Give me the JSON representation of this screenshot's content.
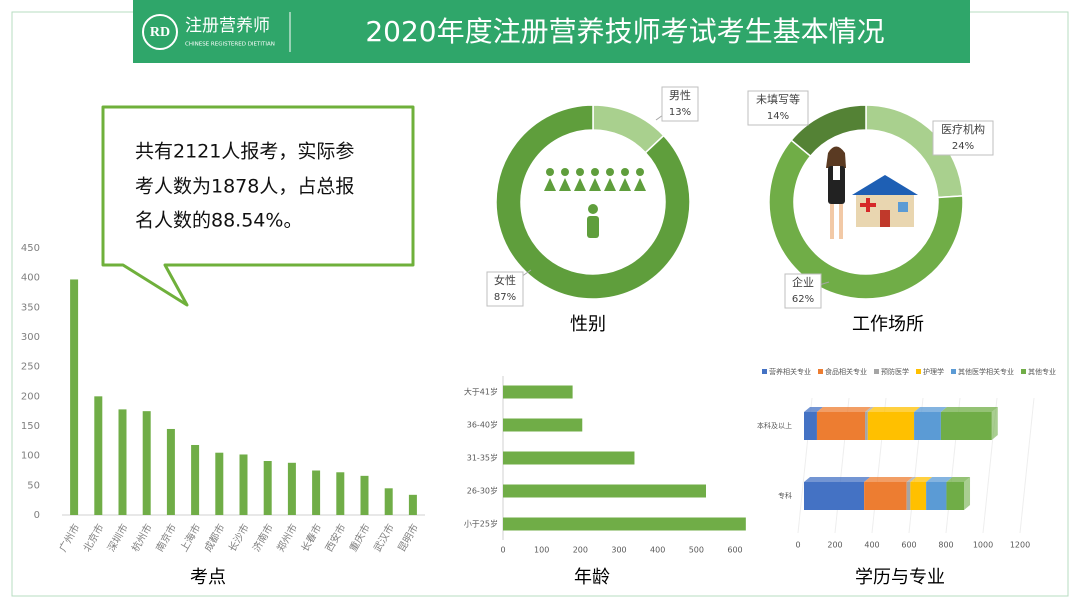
{
  "header": {
    "logo_mark": "RD",
    "logo_name": "注册营养师",
    "logo_subtitle": "CHINESE REGISTERED DIETITIAN",
    "title": "2020年度注册营养技师考试考生基本情况"
  },
  "note": {
    "lines": [
      "共有2121人报考，实际参",
      "考人数为1878人，占总报",
      "名人数的88.54%。"
    ]
  },
  "chart_data": [
    {
      "type": "bar",
      "title": "考点",
      "categories": [
        "广州市",
        "北京市",
        "深圳市",
        "杭州市",
        "南京市",
        "上海市",
        "成都市",
        "长沙市",
        "济南市",
        "郑州市",
        "长春市",
        "西安市",
        "重庆市",
        "武汉市",
        "昆明市"
      ],
      "values": [
        397,
        200,
        178,
        175,
        145,
        118,
        105,
        102,
        91,
        88,
        75,
        72,
        66,
        45,
        34
      ],
      "color": "#70ad47",
      "ylim": [
        0,
        450
      ],
      "yticks": [
        0,
        50,
        100,
        150,
        200,
        250,
        300,
        350,
        400,
        450
      ],
      "grid": false
    },
    {
      "type": "donut",
      "title": "性别",
      "categories": [
        "男性",
        "女性"
      ],
      "values": [
        13,
        87
      ],
      "value_labels": [
        "13%",
        "87%"
      ],
      "colors": [
        "#a9d08e",
        "#5f9e3c"
      ]
    },
    {
      "type": "donut",
      "title": "工作场所",
      "categories": [
        "医疗机构",
        "企业",
        "未填写等"
      ],
      "values": [
        24,
        62,
        14
      ],
      "value_labels": [
        "24%",
        "62%",
        "14%"
      ],
      "colors": [
        "#a9d08e",
        "#70ad47",
        "#548235"
      ]
    },
    {
      "type": "barh",
      "title": "年龄",
      "categories": [
        "大于41岁",
        "36-40岁",
        "31-35岁",
        "26-30岁",
        "小于25岁"
      ],
      "values": [
        180,
        205,
        340,
        525,
        628
      ],
      "color": "#70ad47",
      "xlim": [
        0,
        630
      ],
      "xticks": [
        0,
        100,
        200,
        300,
        400,
        500,
        600
      ]
    },
    {
      "type": "stacked_barh",
      "title": "学历与专业",
      "categories": [
        "本科及以上",
        "专科"
      ],
      "series": [
        {
          "name": "营养相关专业",
          "color": "#4472c4",
          "values": [
            70,
            325
          ]
        },
        {
          "name": "食品相关专业",
          "color": "#ed7d31",
          "values": [
            260,
            230
          ]
        },
        {
          "name": "预防医学",
          "color": "#a5a5a5",
          "values": [
            15,
            20
          ]
        },
        {
          "name": "护理学",
          "color": "#ffc000",
          "values": [
            250,
            85
          ]
        },
        {
          "name": "其他医学相关专业",
          "color": "#5b9bd5",
          "values": [
            145,
            110
          ]
        },
        {
          "name": "其他专业",
          "color": "#70ad47",
          "values": [
            275,
            95
          ]
        }
      ],
      "xlim": [
        0,
        1200
      ],
      "xticks": [
        0,
        200,
        400,
        600,
        800,
        1000,
        1200
      ]
    }
  ]
}
